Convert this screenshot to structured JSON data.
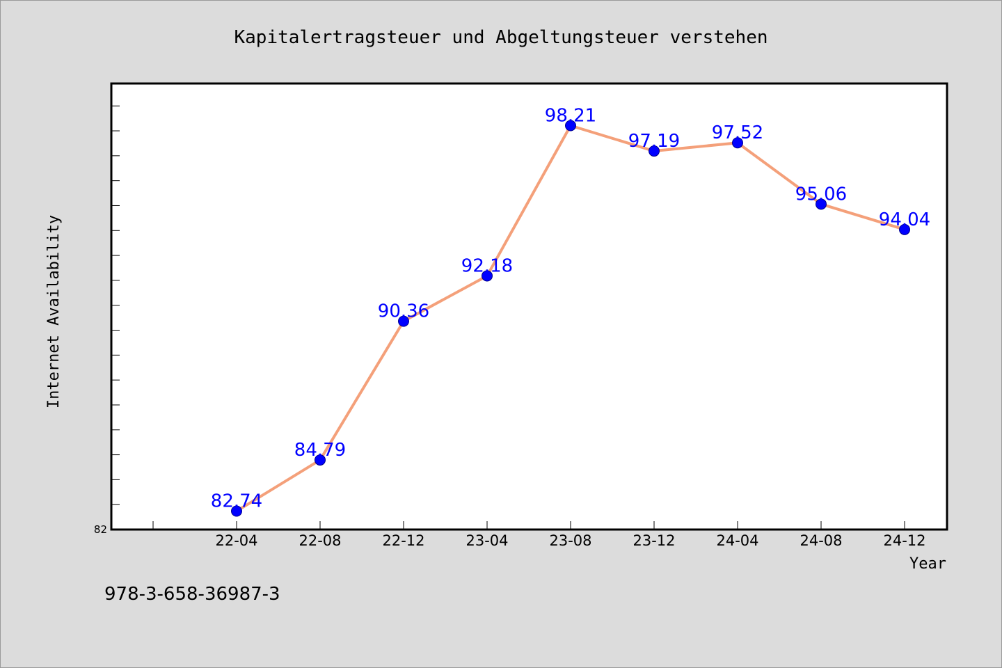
{
  "chart_data": {
    "type": "line",
    "title": "Kapitalertragsteuer und Abgeltungsteuer verstehen",
    "xlabel": "Year",
    "ylabel": "Internet Availability",
    "categories": [
      "22-04",
      "22-08",
      "22-12",
      "23-04",
      "23-08",
      "23-12",
      "24-04",
      "24-08",
      "24-12"
    ],
    "series": [
      {
        "values": [
          82.74,
          84.79,
          90.36,
          92.18,
          98.21,
          97.19,
          97.52,
          95.06,
          94.04
        ]
      }
    ],
    "ylim": [
      82,
      99.9
    ],
    "ytick_labels": [
      "82"
    ],
    "grid": false,
    "legend": "none",
    "data_labels": true
  },
  "colors": {
    "line": "#f4a07a",
    "marker": "#0000ff",
    "marker_edge": "#00008b",
    "data_label": "#0000ff",
    "background": "#dcdcdc",
    "plot_background": "#ffffff"
  },
  "footer_text": "978-3-658-36987-3"
}
